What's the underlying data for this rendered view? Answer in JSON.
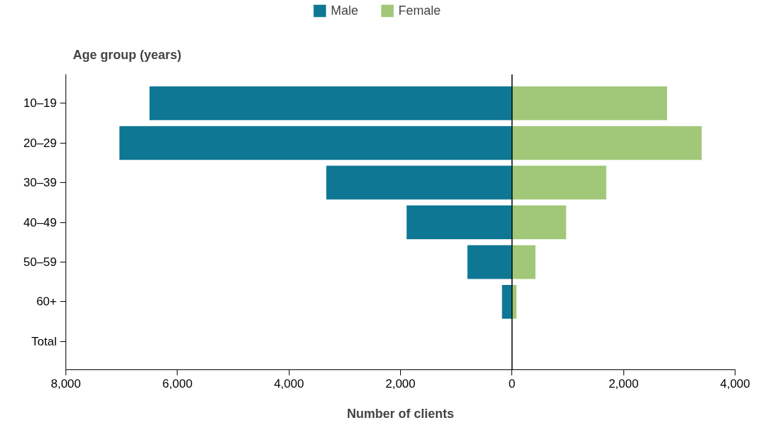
{
  "chart_data": {
    "type": "bar",
    "orientation": "horizontal",
    "stacked": true,
    "ylabel": "Age group (years)",
    "xlabel": "Number of clients",
    "categories": [
      "10–19",
      "20–29",
      "30–39",
      "40–49",
      "50–59",
      "60+",
      "Total"
    ],
    "series": [
      {
        "name": "Male",
        "color": "#0e7794",
        "values": [
          -6500,
          -7040,
          -3330,
          -1890,
          -800,
          -180,
          null
        ]
      },
      {
        "name": "Female",
        "color": "#a0c878",
        "values": [
          2780,
          3400,
          1690,
          970,
          420,
          80,
          null
        ]
      }
    ],
    "xlim": [
      -8000,
      4000
    ],
    "xticks": [
      {
        "value": -8000,
        "label": "8,000"
      },
      {
        "value": -6000,
        "label": "6,000"
      },
      {
        "value": -4000,
        "label": "4,000"
      },
      {
        "value": -2000,
        "label": "2,000"
      },
      0,
      {
        "value": 2000,
        "label": "2,000"
      },
      {
        "value": 4000,
        "label": "4,000"
      }
    ],
    "ref_lines": [
      {
        "axis": "x",
        "value": 0,
        "label": null,
        "color": "#000000"
      }
    ],
    "grid": false,
    "legend": "top"
  }
}
